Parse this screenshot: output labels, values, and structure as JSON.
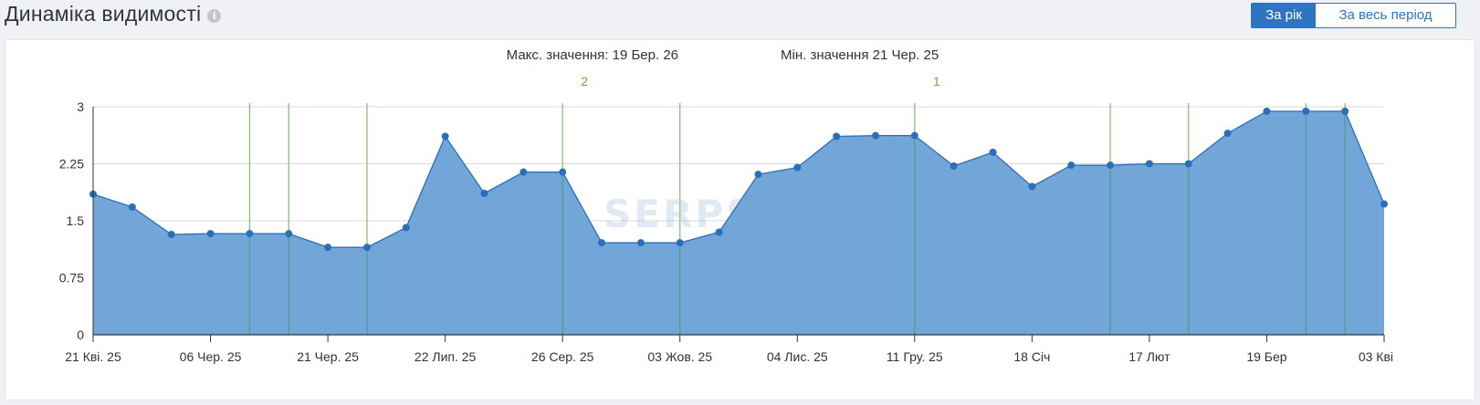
{
  "header": {
    "title": "Динаміка видимості",
    "info_icon": "info-icon"
  },
  "period_switch": {
    "year_label": "За рік",
    "all_label": "За весь період",
    "active": "year"
  },
  "watermark": "SERPSTAT",
  "annotations": {
    "max_label": "Макс. значення: 19 Бер. 26",
    "min_label": "Мін. значення 21 Чер. 25"
  },
  "colors": {
    "area_fill": "#73a6d8",
    "line": "#2b6fba",
    "event_line": "#7cc16b",
    "active_button": "#2f74c0",
    "grid": "#d9d9d9"
  },
  "chart_data": {
    "type": "area",
    "title": "",
    "xlabel": "",
    "ylabel": "",
    "ylim": [
      0,
      3
    ],
    "yticks": [
      "0",
      "0.75",
      "1.5",
      "2.25",
      "3"
    ],
    "grid": true,
    "x_tick_labels": [
      "21 Кві. 25",
      "06 Чер. 25",
      "21 Чер. 25",
      "22 Лип. 25",
      "26 Сер. 25",
      "03 Жов. 25",
      "04 Лис. 25",
      "11 Гру. 25",
      "18 Січ",
      "17 Лют",
      "19 Бер",
      "03 Кві"
    ],
    "series": [
      {
        "values": [
          1.85,
          1.68,
          1.32,
          1.33,
          1.33,
          1.33,
          1.15,
          1.15,
          1.41,
          2.61,
          1.86,
          2.14,
          2.14,
          1.21,
          1.21,
          1.21,
          1.35,
          2.11,
          2.2,
          2.61,
          2.62,
          2.62,
          2.22,
          2.4,
          1.95,
          2.23,
          2.23,
          2.25,
          2.25,
          2.65,
          2.94,
          2.94,
          2.94,
          1.72
        ]
      }
    ],
    "event_flags": [
      {
        "label": "2",
        "point_index": 12
      },
      {
        "label": "1",
        "point_index": 21
      }
    ]
  }
}
